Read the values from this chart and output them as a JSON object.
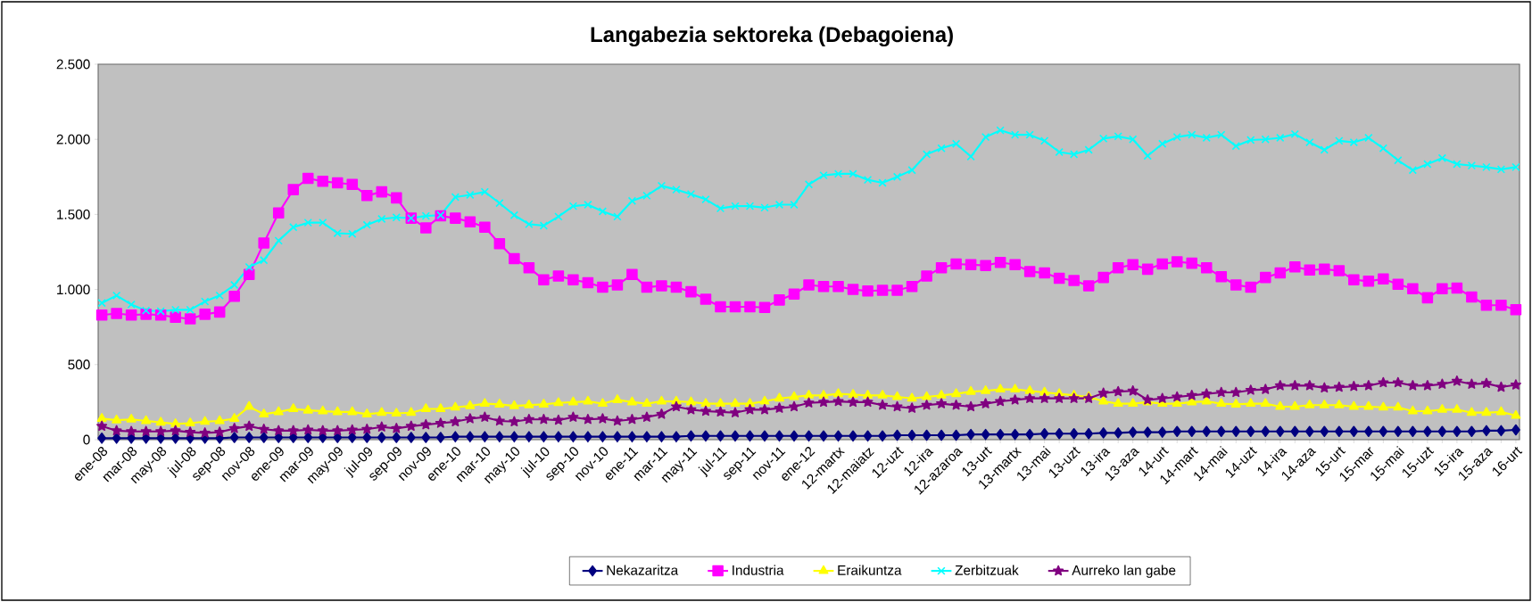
{
  "chart_data": {
    "type": "line",
    "title": "Langabezia sektoreka (Debagoiena)",
    "categories": [
      "ene-08",
      null,
      "mar-08",
      null,
      "may-08",
      null,
      "jul-08",
      null,
      "sep-08",
      null,
      "nov-08",
      null,
      "ene-09",
      null,
      "mar-09",
      null,
      "may-09",
      null,
      "jul-09",
      null,
      "sep-09",
      null,
      "nov-09",
      null,
      "ene-10",
      null,
      "mar-10",
      null,
      "may-10",
      null,
      "jul-10",
      null,
      "sep-10",
      null,
      "nov-10",
      null,
      "ene-11",
      null,
      "mar-11",
      null,
      "may-11",
      null,
      "jul-11",
      null,
      "sep-11",
      null,
      "nov-11",
      null,
      "ene-12",
      null,
      "12-martx",
      null,
      "12-maiatz",
      null,
      "12-uzt",
      null,
      "12-ira",
      null,
      "12-azaroa",
      null,
      "13-urt",
      null,
      "13-martx",
      null,
      "13-mai",
      null,
      "13-uzt",
      null,
      "13-ira",
      null,
      "13-aza",
      null,
      "14-urt",
      null,
      "14-mart",
      null,
      "14-mai",
      null,
      "14-uzt",
      null,
      "14-ira",
      null,
      "14-aza",
      null,
      "15-urt",
      null,
      "15-mar",
      null,
      "15-mai",
      null,
      "15-uzt",
      null,
      "15-ira",
      null,
      "15-aza",
      null,
      "16-urt"
    ],
    "ylim": [
      0,
      2500
    ],
    "yticks": [
      0,
      {
        "value": 500,
        "label": "500"
      },
      {
        "value": 1000,
        "label": "1.000"
      },
      {
        "value": 1500,
        "label": "1.500"
      },
      {
        "value": 2000,
        "label": "2.000"
      },
      {
        "value": 2500,
        "label": "2.500"
      }
    ],
    "legend": "bottom",
    "series": [
      {
        "name": "Nekazaritza",
        "color": "#000080",
        "marker": "diamond",
        "values": [
          10,
          10,
          10,
          10,
          10,
          10,
          10,
          10,
          10,
          15,
          15,
          15,
          15,
          15,
          15,
          15,
          15,
          15,
          15,
          15,
          15,
          15,
          15,
          15,
          20,
          20,
          20,
          20,
          20,
          20,
          20,
          20,
          20,
          20,
          20,
          20,
          20,
          20,
          20,
          20,
          25,
          25,
          25,
          25,
          25,
          25,
          25,
          25,
          25,
          25,
          25,
          25,
          25,
          25,
          30,
          30,
          30,
          30,
          30,
          35,
          35,
          35,
          35,
          35,
          40,
          40,
          40,
          40,
          45,
          45,
          50,
          50,
          50,
          55,
          55,
          55,
          55,
          55,
          55,
          55,
          55,
          55,
          55,
          55,
          55,
          55,
          55,
          55,
          55,
          55,
          55,
          55,
          55,
          55,
          60,
          60,
          65
        ]
      },
      {
        "name": "Industria",
        "color": "#ff00ff",
        "marker": "square",
        "values": [
          830,
          840,
          830,
          835,
          830,
          815,
          805,
          835,
          850,
          955,
          1100,
          1310,
          1510,
          1665,
          1740,
          1720,
          1710,
          1700,
          1625,
          1650,
          1610,
          1475,
          1410,
          1490,
          1475,
          1450,
          1415,
          1305,
          1205,
          1145,
          1065,
          1090,
          1065,
          1045,
          1015,
          1030,
          1100,
          1015,
          1025,
          1015,
          985,
          935,
          885,
          885,
          885,
          880,
          930,
          970,
          1030,
          1020,
          1020,
          1000,
          990,
          995,
          995,
          1020,
          1090,
          1145,
          1170,
          1165,
          1160,
          1180,
          1165,
          1120,
          1110,
          1075,
          1060,
          1025,
          1080,
          1145,
          1165,
          1135,
          1170,
          1185,
          1175,
          1145,
          1085,
          1030,
          1015,
          1080,
          1110,
          1150,
          1130,
          1135,
          1125,
          1065,
          1055,
          1070,
          1035,
          1005,
          945,
          1005,
          1010,
          950,
          895,
          895,
          865
        ]
      },
      {
        "name": "Eraikuntza",
        "color": "#ffff00",
        "marker": "triangle",
        "values": [
          140,
          130,
          135,
          125,
          115,
          105,
          110,
          120,
          125,
          140,
          220,
          170,
          185,
          205,
          195,
          190,
          185,
          185,
          170,
          180,
          175,
          180,
          205,
          205,
          215,
          225,
          240,
          235,
          225,
          230,
          235,
          245,
          250,
          255,
          240,
          265,
          250,
          240,
          255,
          255,
          250,
          240,
          240,
          240,
          240,
          255,
          275,
          285,
          295,
          295,
          305,
          300,
          295,
          295,
          285,
          275,
          285,
          295,
          305,
          320,
          325,
          335,
          335,
          325,
          315,
          305,
          295,
          285,
          255,
          240,
          240,
          250,
          240,
          240,
          250,
          255,
          240,
          235,
          240,
          240,
          220,
          220,
          230,
          230,
          230,
          220,
          220,
          215,
          215,
          190,
          190,
          200,
          200,
          180,
          180,
          185,
          160
        ]
      },
      {
        "name": "Zerbitzuak",
        "color": "#00ffff",
        "marker": "cross",
        "values": [
          910,
          960,
          900,
          860,
          855,
          865,
          865,
          920,
          960,
          1030,
          1150,
          1195,
          1325,
          1415,
          1445,
          1445,
          1375,
          1370,
          1430,
          1470,
          1480,
          1475,
          1490,
          1495,
          1615,
          1630,
          1650,
          1575,
          1495,
          1435,
          1425,
          1485,
          1555,
          1565,
          1520,
          1485,
          1590,
          1625,
          1690,
          1665,
          1635,
          1600,
          1540,
          1555,
          1555,
          1545,
          1565,
          1565,
          1700,
          1760,
          1770,
          1770,
          1730,
          1710,
          1750,
          1795,
          1900,
          1940,
          1970,
          1885,
          2015,
          2060,
          2030,
          2030,
          1990,
          1915,
          1900,
          1930,
          2005,
          2020,
          2000,
          1890,
          1970,
          2015,
          2030,
          2010,
          2030,
          1955,
          1995,
          2000,
          2010,
          2035,
          1980,
          1930,
          1990,
          1980,
          2010,
          1940,
          1860,
          1795,
          1835,
          1875,
          1835,
          1825,
          1815,
          1800,
          1815
        ]
      },
      {
        "name": "Aurreko lan gabe",
        "color": "#800080",
        "marker": "star",
        "values": [
          90,
          60,
          55,
          55,
          55,
          60,
          50,
          45,
          50,
          75,
          90,
          70,
          60,
          60,
          65,
          60,
          60,
          65,
          70,
          85,
          75,
          90,
          100,
          110,
          120,
          140,
          150,
          125,
          120,
          135,
          135,
          130,
          150,
          135,
          140,
          125,
          135,
          150,
          170,
          220,
          200,
          190,
          185,
          180,
          200,
          200,
          210,
          220,
          245,
          250,
          255,
          250,
          250,
          230,
          220,
          210,
          230,
          240,
          230,
          220,
          240,
          255,
          265,
          275,
          275,
          275,
          275,
          275,
          310,
          320,
          325,
          265,
          275,
          285,
          295,
          305,
          315,
          315,
          330,
          335,
          360,
          360,
          360,
          345,
          350,
          355,
          360,
          380,
          380,
          360,
          360,
          370,
          390,
          370,
          375,
          350,
          365
        ]
      }
    ]
  }
}
